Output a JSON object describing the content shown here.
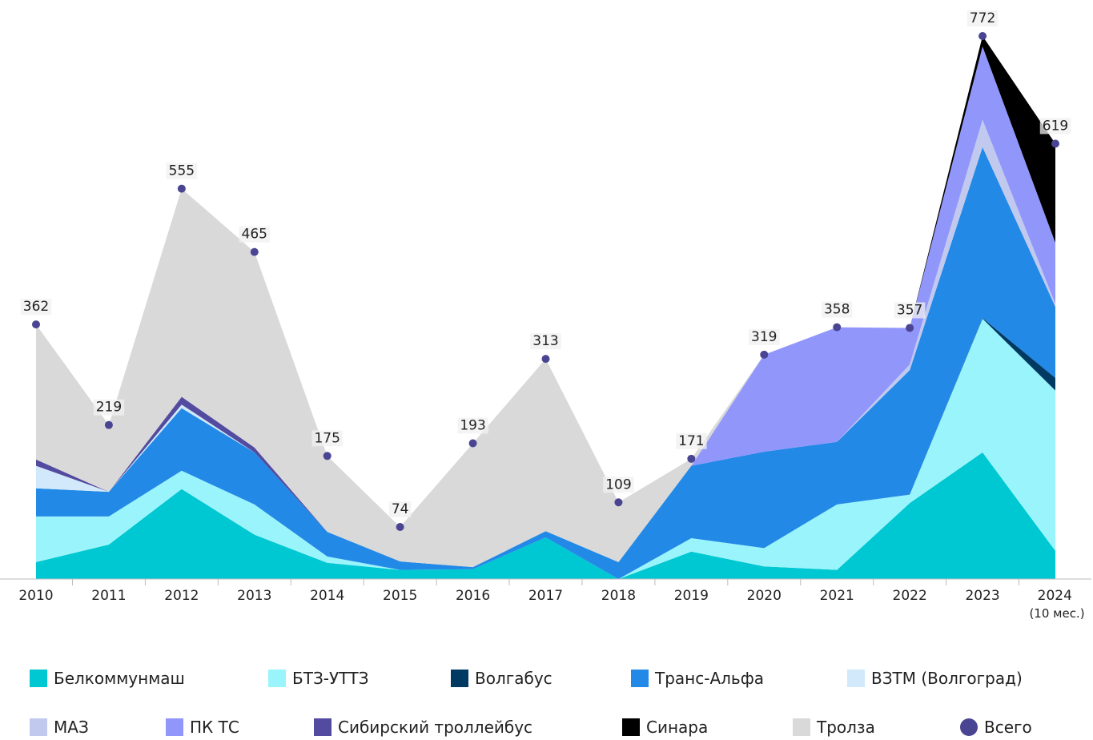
{
  "chart_data": {
    "type": "stacked_area",
    "categories": [
      "2010",
      "2011",
      "2012",
      "2013",
      "2014",
      "2015",
      "2016",
      "2017",
      "2018",
      "2019",
      "2020",
      "2021",
      "2022",
      "2023",
      "2024 (10 мес.)"
    ],
    "series": [
      {
        "name": "Белкоммунмаш",
        "color": "#00c8d2",
        "values": [
          24,
          49,
          128,
          63,
          23,
          13,
          14,
          59,
          0,
          39,
          18,
          13,
          108,
          180,
          40
        ]
      },
      {
        "name": "БТЗ-УТТЗ",
        "color": "#99f5fb",
        "values": [
          65,
          40,
          26,
          43,
          9,
          0,
          0,
          0,
          0,
          19,
          26,
          93,
          12,
          190,
          228
        ]
      },
      {
        "name": "Волгабус",
        "color": "#003a63",
        "values": [
          0,
          0,
          0,
          0,
          0,
          0,
          0,
          0,
          0,
          0,
          0,
          0,
          0,
          1,
          18
        ]
      },
      {
        "name": "Транс-Альфа",
        "color": "#2389e6",
        "values": [
          40,
          35,
          89,
          74,
          35,
          12,
          3,
          9,
          24,
          103,
          137,
          89,
          177,
          243,
          101
        ]
      },
      {
        "name": "ВЗТМ (Волгоград)",
        "color": "#d1e9fa",
        "values": [
          32,
          0,
          5,
          0,
          0,
          0,
          0,
          0,
          0,
          0,
          0,
          0,
          0,
          0,
          0
        ]
      },
      {
        "name": "МАЗ",
        "color": "#c1c9ee",
        "values": [
          0,
          0,
          0,
          0,
          0,
          0,
          0,
          0,
          0,
          0,
          0,
          0,
          8,
          39,
          4
        ]
      },
      {
        "name": "ПК ТС",
        "color": "#9196fb",
        "values": [
          0,
          0,
          0,
          0,
          0,
          0,
          0,
          0,
          0,
          0,
          138,
          163,
          52,
          104,
          87
        ]
      },
      {
        "name": "Сибирский троллейбус",
        "color": "#524b9f",
        "values": [
          9,
          0,
          11,
          7,
          0,
          0,
          0,
          0,
          0,
          0,
          0,
          0,
          0,
          0,
          0
        ]
      },
      {
        "name": "Синара",
        "color": "#000000",
        "values": [
          0,
          0,
          0,
          0,
          0,
          0,
          0,
          0,
          0,
          0,
          0,
          0,
          0,
          15,
          141
        ]
      },
      {
        "name": "Тролза",
        "color": "#d9d9d9",
        "values": [
          192,
          95,
          296,
          278,
          108,
          49,
          176,
          245,
          85,
          10,
          0,
          0,
          0,
          0,
          0
        ]
      }
    ],
    "total": {
      "name": "Всего",
      "color": "#4a4593",
      "values": [
        362,
        219,
        555,
        465,
        175,
        74,
        193,
        313,
        109,
        171,
        319,
        358,
        357,
        772,
        619
      ]
    }
  }
}
